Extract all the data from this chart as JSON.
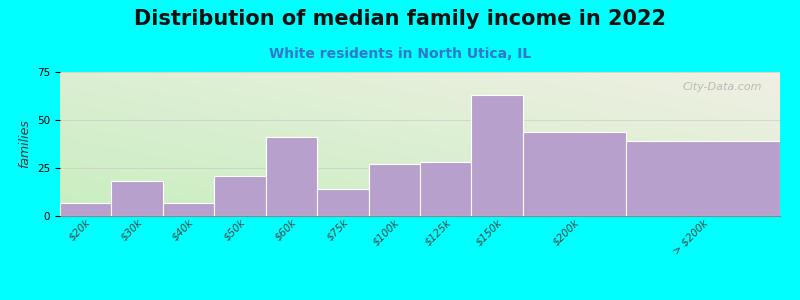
{
  "title": "Distribution of median family income in 2022",
  "subtitle": "White residents in North Utica, IL",
  "ylabel": "families",
  "background_color": "#00FFFF",
  "bar_color": "#b8a0cc",
  "bar_edge_color": "#ffffff",
  "categories": [
    "$20k",
    "$30k",
    "$40k",
    "$50k",
    "$60k",
    "$75k",
    "$100k",
    "$125k",
    "$150k",
    "$200k",
    "> $200k"
  ],
  "values": [
    7,
    18,
    7,
    21,
    41,
    14,
    27,
    28,
    63,
    44,
    39
  ],
  "bar_widths": [
    1,
    1,
    1,
    1,
    1,
    1,
    1,
    1,
    1,
    2,
    3
  ],
  "ylim": [
    0,
    75
  ],
  "yticks": [
    0,
    25,
    50,
    75
  ],
  "title_fontsize": 15,
  "subtitle_fontsize": 10,
  "subtitle_color": "#3377cc",
  "ylabel_fontsize": 9,
  "tick_fontsize": 7.5,
  "watermark": "City-Data.com",
  "grad_color_topleft": "#c8eec0",
  "grad_color_bottomright": "#f0f0e4"
}
